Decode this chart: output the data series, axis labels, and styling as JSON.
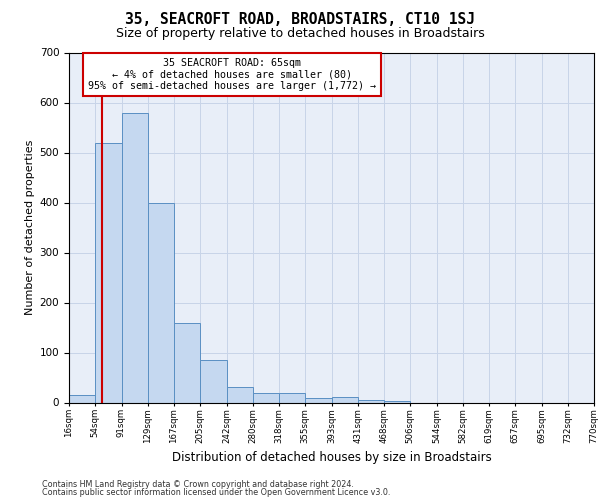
{
  "title": "35, SEACROFT ROAD, BROADSTAIRS, CT10 1SJ",
  "subtitle": "Size of property relative to detached houses in Broadstairs",
  "xlabel": "Distribution of detached houses by size in Broadstairs",
  "ylabel": "Number of detached properties",
  "bar_values": [
    15,
    520,
    580,
    400,
    160,
    85,
    32,
    20,
    20,
    10,
    12,
    5,
    3,
    0,
    0,
    0,
    0,
    0,
    0,
    0
  ],
  "bar_labels": [
    "16sqm",
    "54sqm",
    "91sqm",
    "129sqm",
    "167sqm",
    "205sqm",
    "242sqm",
    "280sqm",
    "318sqm",
    "355sqm",
    "393sqm",
    "431sqm",
    "468sqm",
    "506sqm",
    "544sqm",
    "582sqm",
    "619sqm",
    "657sqm",
    "695sqm",
    "732sqm",
    "770sqm"
  ],
  "bar_color": "#c5d8f0",
  "bar_edge_color": "#5a8fc3",
  "grid_color": "#c8d4e8",
  "background_color": "#e8eef8",
  "vline_color": "#cc0000",
  "vline_x": 1.25,
  "annotation_title": "35 SEACROFT ROAD: 65sqm",
  "annotation_line1": "← 4% of detached houses are smaller (80)",
  "annotation_line2": "95% of semi-detached houses are larger (1,772) →",
  "annotation_box_facecolor": "#ffffff",
  "annotation_box_edgecolor": "#cc0000",
  "ylim": [
    0,
    700
  ],
  "yticks": [
    0,
    100,
    200,
    300,
    400,
    500,
    600,
    700
  ],
  "footer_line1": "Contains HM Land Registry data © Crown copyright and database right 2024.",
  "footer_line2": "Contains public sector information licensed under the Open Government Licence v3.0."
}
